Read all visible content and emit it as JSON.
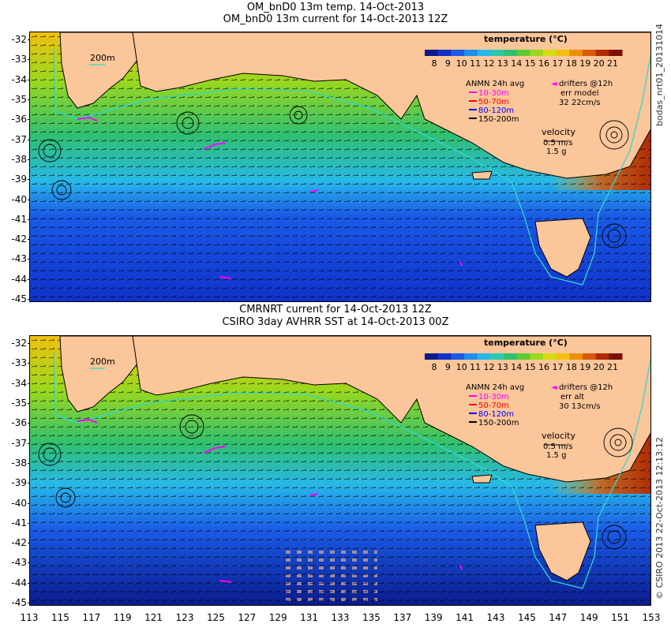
{
  "panels": [
    {
      "id": "top",
      "title_line1": "OM_bnD0 13m temp. 14-Oct-2013",
      "title_line2": "OM_bnD0 13m current for 14-Oct-2013 12Z",
      "isobath_label": "200m",
      "colorbar_title": "temperature (°C)",
      "colorbar_ticks": [
        "8",
        "9",
        "10",
        "11",
        "12",
        "13",
        "14",
        "15",
        "16",
        "17",
        "18",
        "19",
        "20",
        "21"
      ],
      "anmn_title": "ANMN 24h avg",
      "anmn_depths": [
        {
          "label": "10-30m",
          "color": "#ff00ff"
        },
        {
          "label": "50-70m",
          "color": "#ff0000"
        },
        {
          "label": "80-120m",
          "color": "#0000ff"
        },
        {
          "label": "150-200m",
          "color": "#000000"
        }
      ],
      "drifters_label": "drifters @12h",
      "err_label": "err model",
      "err_value": "32 22cm/s",
      "velocity_title": "velocity",
      "velocity_scale": "0.5 m/s",
      "velocity_scale2": "1.5 g",
      "side_label": "bodas_nrt01_20131014"
    },
    {
      "id": "bottom",
      "title_line1": "CMRNRT current for 14-Oct-2013 12Z",
      "title_line2": "CSIRO 3day AVHRR SST at 14-Oct-2013 00Z",
      "isobath_label": "200m",
      "colorbar_title": "temperature (°C)",
      "colorbar_ticks": [
        "8",
        "9",
        "10",
        "11",
        "12",
        "13",
        "14",
        "15",
        "16",
        "17",
        "18",
        "19",
        "20",
        "21"
      ],
      "anmn_title": "ANMN 24h avg",
      "anmn_depths": [
        {
          "label": "10-30m",
          "color": "#ff00ff"
        },
        {
          "label": "50-70m",
          "color": "#ff0000"
        },
        {
          "label": "80-120m",
          "color": "#0000ff"
        },
        {
          "label": "150-200m",
          "color": "#000000"
        }
      ],
      "drifters_label": "drifters @12h",
      "err_label": "err alt",
      "err_value": "30 13cm/s",
      "velocity_title": "velocity",
      "velocity_scale": "0.5 m/s",
      "velocity_scale2": "1.5 g",
      "side_label": "© CSIRO 2013  22-Oct-2013 12:13:12"
    }
  ],
  "y_ticks": [
    "-32",
    "-33",
    "-34",
    "-35",
    "-36",
    "-37",
    "-38",
    "-39",
    "-40",
    "-41",
    "-42",
    "-43",
    "-44",
    "-45"
  ],
  "x_ticks": [
    "113",
    "115",
    "117",
    "119",
    "121",
    "123",
    "125",
    "127",
    "129",
    "131",
    "133",
    "135",
    "137",
    "139",
    "141",
    "143",
    "145",
    "147",
    "149",
    "151",
    "153"
  ],
  "colors": {
    "land": "#fbc69a",
    "colormap": [
      "#0a1a8c",
      "#1030c8",
      "#1a5ae6",
      "#1e8ef0",
      "#28b8e8",
      "#2cc8b0",
      "#30c070",
      "#5ccc30",
      "#9ad81e",
      "#d6dc12",
      "#f0c010",
      "#ec9008",
      "#d85a06",
      "#b02a04",
      "#7a1202"
    ],
    "isobath": "#30d8d0"
  }
}
